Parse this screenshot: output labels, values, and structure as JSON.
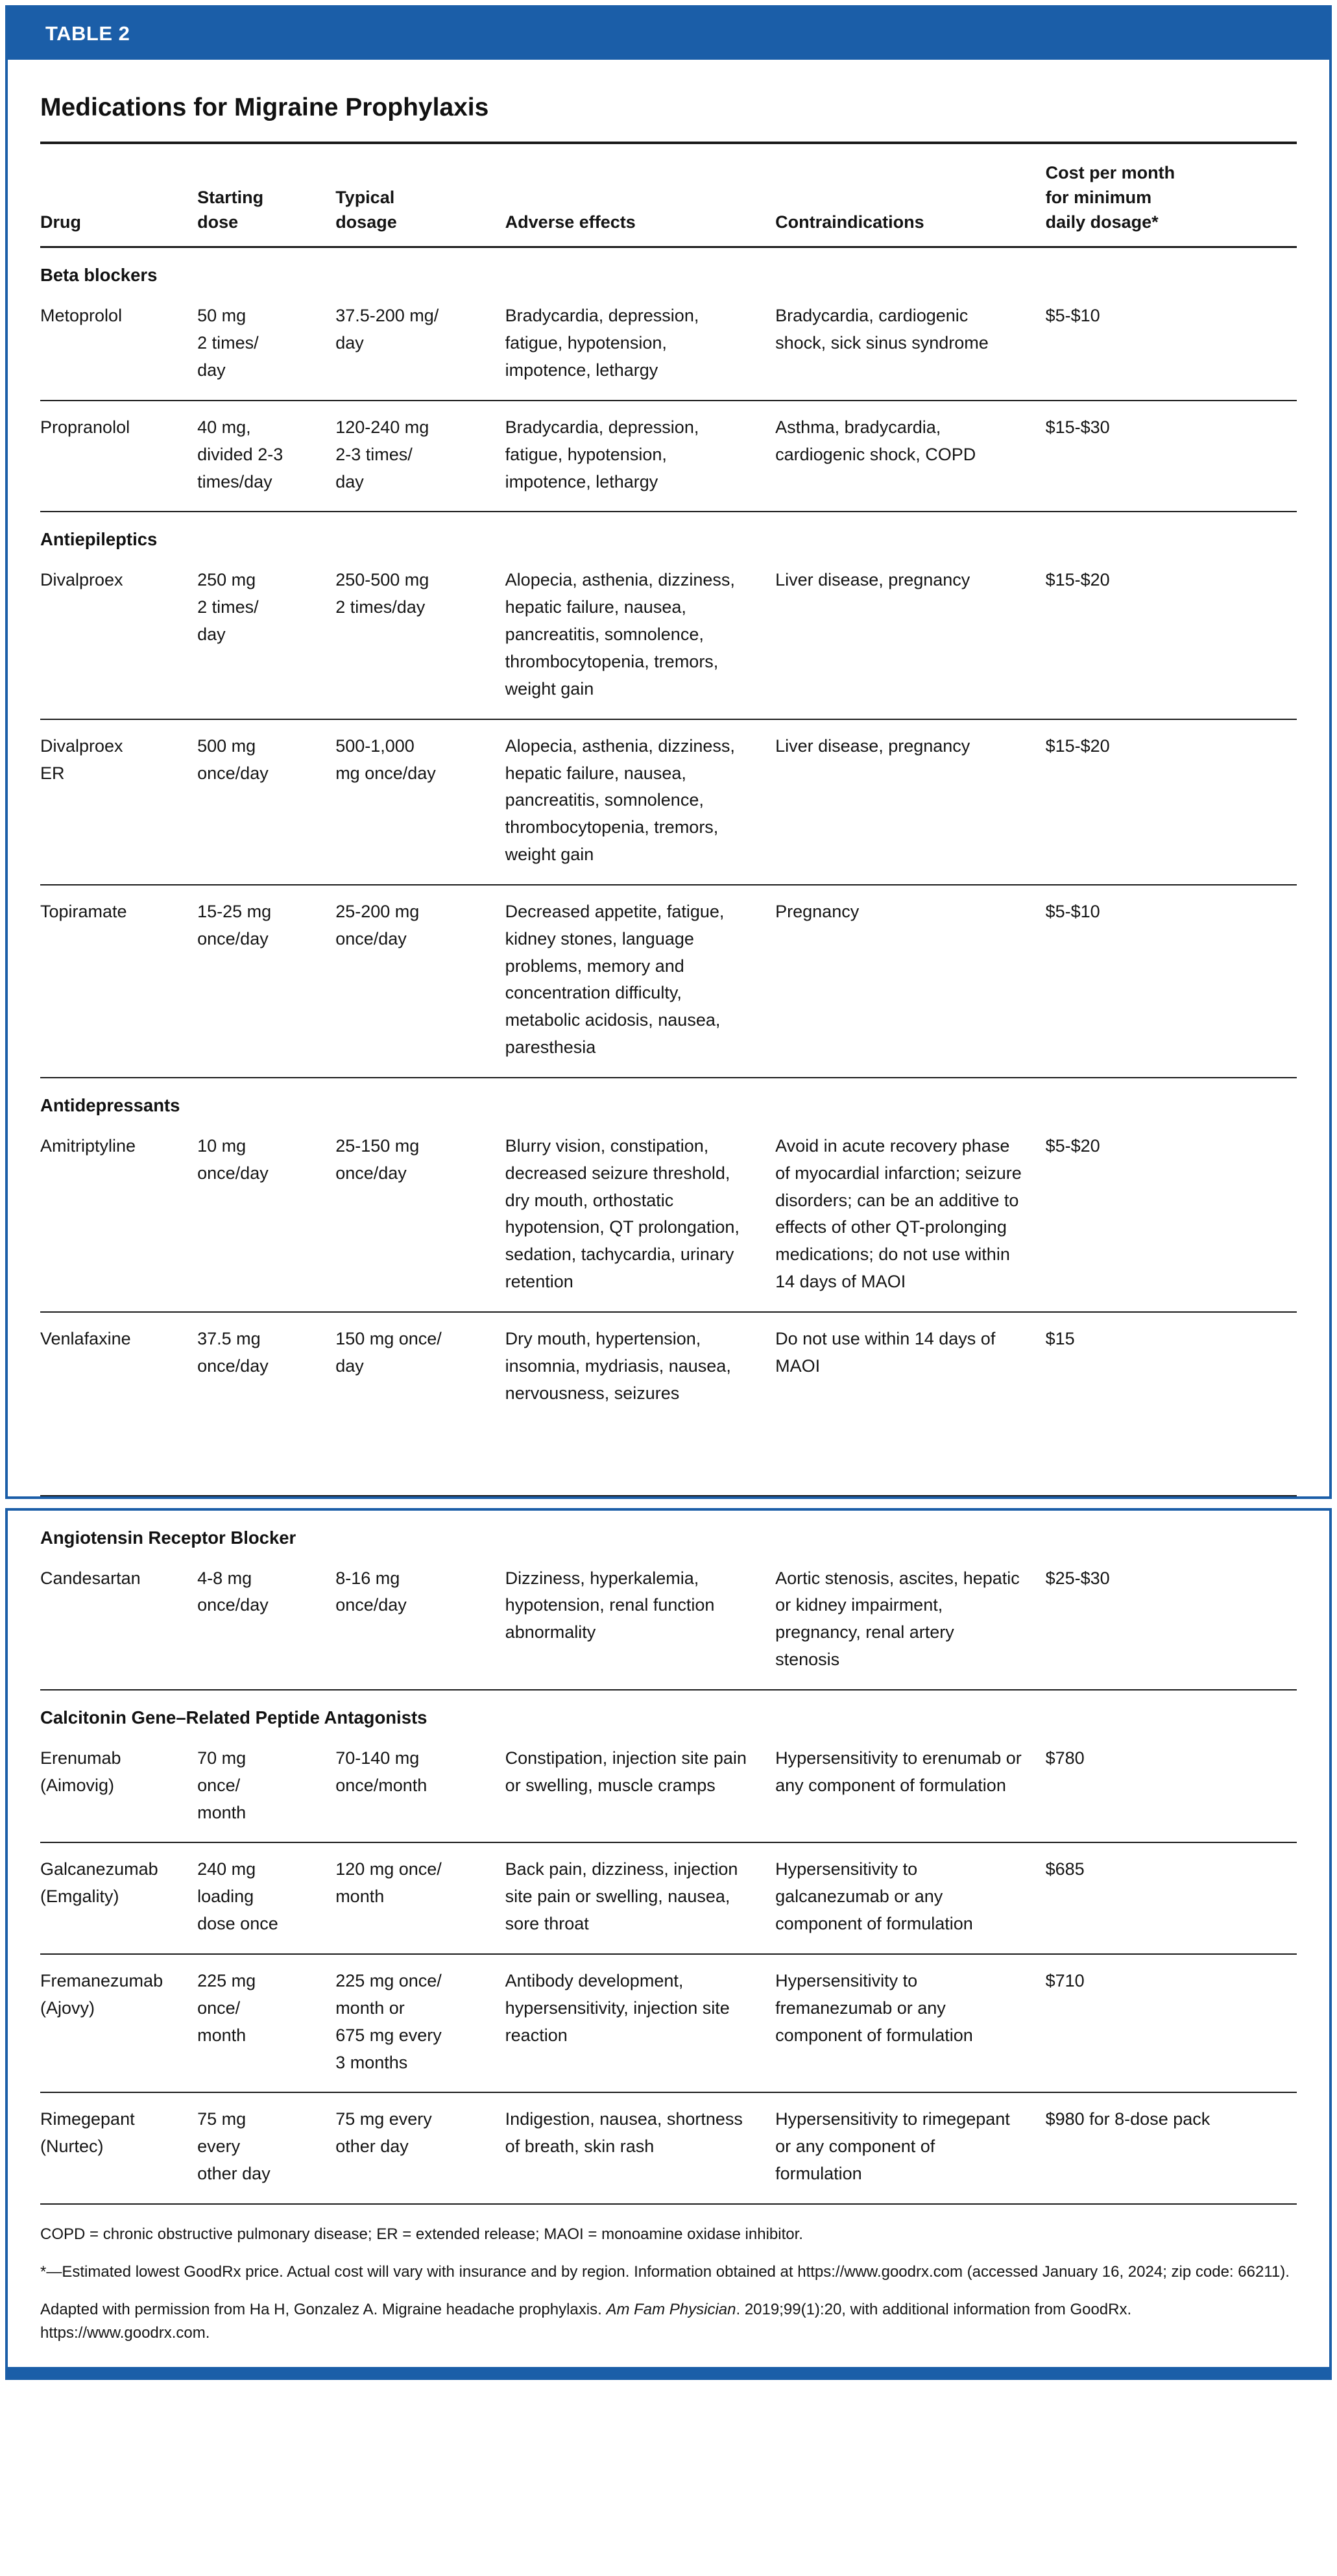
{
  "header": {
    "table_label": "TABLE 2",
    "title": "Medications for Migraine Prophylaxis"
  },
  "columns": [
    "Drug",
    "Starting\ndose",
    "Typical\ndosage",
    "Adverse effects",
    "Contraindications",
    "Cost per month\nfor minimum\ndaily dosage*"
  ],
  "sections": [
    {
      "card": 1,
      "name": "Beta blockers",
      "rows": [
        {
          "drug": "Metoprolol",
          "starting_dose": "50 mg\n2 times/\nday",
          "typical_dosage": "37.5-200 mg/\nday",
          "adverse_effects": "Bradycardia, depression, fatigue, hypotension, impotence, lethargy",
          "contraindications": "Bradycardia, cardiogenic shock, sick sinus syndrome",
          "cost": "$5-$10"
        },
        {
          "drug": "Propranolol",
          "starting_dose": "40 mg,\ndivided 2-3\ntimes/day",
          "typical_dosage": "120-240 mg\n2-3 times/\nday",
          "adverse_effects": "Bradycardia, depression, fatigue, hypotension, impotence, lethargy",
          "contraindications": "Asthma, bradycardia, cardiogenic shock, COPD",
          "cost": "$15-$30"
        }
      ]
    },
    {
      "card": 1,
      "name": "Antiepileptics",
      "rows": [
        {
          "drug": "Divalproex",
          "starting_dose": "250 mg\n2 times/\nday",
          "typical_dosage": "250-500 mg\n2 times/day",
          "adverse_effects": "Alopecia, asthenia, dizziness, hepatic failure, nausea, pancreatitis, somnolence, thrombocytopenia, tremors, weight gain",
          "contraindications": "Liver disease, pregnancy",
          "cost": "$15-$20"
        },
        {
          "drug": "Divalproex\nER",
          "starting_dose": "500 mg\nonce/day",
          "typical_dosage": "500-1,000\nmg once/day",
          "adverse_effects": "Alopecia, asthenia, dizziness, hepatic failure, nausea, pancreatitis, somnolence, thrombocytopenia, tremors, weight gain",
          "contraindications": "Liver disease, pregnancy",
          "cost": "$15-$20"
        },
        {
          "drug": "Topiramate",
          "starting_dose": "15-25 mg\nonce/day",
          "typical_dosage": "25-200 mg\nonce/day",
          "adverse_effects": "Decreased appetite, fatigue, kidney stones, language problems, memory and concentration difficulty, metabolic acidosis, nausea, paresthesia",
          "contraindications": "Pregnancy",
          "cost": "$5-$10"
        }
      ]
    },
    {
      "card": 1,
      "name": "Antidepressants",
      "rows": [
        {
          "drug": "Amitriptyline",
          "starting_dose": "10 mg\nonce/day",
          "typical_dosage": "25-150 mg\nonce/day",
          "adverse_effects": "Blurry vision, constipation, decreased seizure threshold, dry mouth, orthostatic hypotension, QT prolongation, sedation, tachycardia, urinary retention",
          "contraindications": "Avoid in acute recovery phase of myocardial infarction; seizure disorders; can be an additive to effects of other QT-prolonging medications; do not use within 14 days of MAOI",
          "cost": "$5-$20"
        },
        {
          "drug": "Venlafaxine",
          "starting_dose": "37.5 mg\nonce/day",
          "typical_dosage": "150 mg once/\nday",
          "adverse_effects": "Dry mouth, hypertension, insomnia, mydriasis, nausea, nervousness, seizures",
          "contraindications": "Do not use within 14 days of MAOI",
          "cost": "$15"
        }
      ]
    },
    {
      "card": 2,
      "name": "Angiotensin Receptor Blocker",
      "rows": [
        {
          "drug": "Candesartan",
          "starting_dose": "4-8 mg\nonce/day",
          "typical_dosage": "8-16 mg\nonce/day",
          "adverse_effects": "Dizziness, hyperkalemia, hypotension, renal function abnormality",
          "contraindications": "Aortic stenosis, ascites, hepatic or kidney impairment, pregnancy, renal artery stenosis",
          "cost": "$25-$30"
        }
      ]
    },
    {
      "card": 2,
      "name": "Calcitonin Gene–Related Peptide Antagonists",
      "rows": [
        {
          "drug": "Erenumab\n(Aimovig)",
          "starting_dose": "70 mg\nonce/\nmonth",
          "typical_dosage": "70-140 mg\nonce/month",
          "adverse_effects": "Constipation, injection site pain or swelling, muscle cramps",
          "contraindications": "Hypersensitivity to erenumab or any component of formulation",
          "cost": "$780"
        },
        {
          "drug": "Galcanezumab\n(Emgality)",
          "starting_dose": "240 mg\nloading\ndose once",
          "typical_dosage": "120 mg once/\nmonth",
          "adverse_effects": "Back pain, dizziness, injection site pain or swelling, nausea, sore throat",
          "contraindications": "Hypersensitivity to galcanezumab or any component of formulation",
          "cost": "$685"
        },
        {
          "drug": "Fremanezumab\n(Ajovy)",
          "starting_dose": "225 mg\nonce/\nmonth",
          "typical_dosage": "225 mg once/\nmonth or\n675 mg every\n3 months",
          "adverse_effects": "Antibody development, hypersensitivity, injection site reaction",
          "contraindications": "Hypersensitivity to fremanezumab or any component of formulation",
          "cost": "$710"
        },
        {
          "drug": "Rimegepant\n(Nurtec)",
          "starting_dose": "75 mg\nevery\nother day",
          "typical_dosage": "75 mg every\nother day",
          "adverse_effects": "Indigestion, nausea, shortness of breath, skin rash",
          "contraindications": "Hypersensitivity to rimegepant or any component of formulation",
          "cost": "$980 for 8-dose pack"
        }
      ]
    }
  ],
  "footnotes": {
    "abbreviations": "COPD = chronic obstructive pulmonary disease; ER = extended release; MAOI = monoamine oxidase inhibitor.",
    "cost_note": "*—Estimated lowest GoodRx price. Actual cost will vary with insurance and by region. Information obtained at https://www.goodrx.com (accessed January 16, 2024; zip code: 66211).",
    "attribution_pre": "Adapted with permission from Ha H, Gonzalez A. Migraine headache prophylaxis. ",
    "attribution_italic": "Am Fam Physician",
    "attribution_post": ". 2019;99(1):20, with additional information from GoodRx. https://www.goodrx.com."
  },
  "colors": {
    "accent_blue": "#1b5ea8",
    "rule_black": "#1a1a1a",
    "text_ink": "#141414"
  }
}
